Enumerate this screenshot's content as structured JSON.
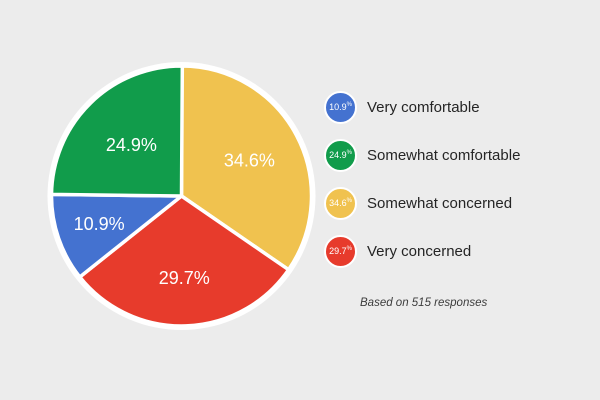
{
  "chart_data": {
    "type": "pie",
    "categories": [
      "Very comfortable",
      "Somewhat comfortable",
      "Somewhat concerned",
      "Very concerned"
    ],
    "values": [
      10.9,
      24.9,
      34.6,
      29.7
    ],
    "slice_labels": [
      "10.9%",
      "24.9%",
      "34.6%",
      "29.7%"
    ],
    "colors": [
      "#4472D0",
      "#119C4B",
      "#F0C24F",
      "#E73B2C"
    ],
    "start_angle_deg": 0,
    "direction": "clockwise",
    "order_from_top_clockwise": [
      "Somewhat concerned",
      "Very concerned",
      "Very comfortable",
      "Somewhat comfortable"
    ],
    "slice_label_color": "#FFFFFF",
    "legend_position": "right",
    "footnote": "Based on 515 responses"
  },
  "colors": {
    "background": "#ECECEC",
    "pie_outline": "#FFFFFF",
    "legend_text": "#252525",
    "footnote_text": "#3C3C3C"
  }
}
